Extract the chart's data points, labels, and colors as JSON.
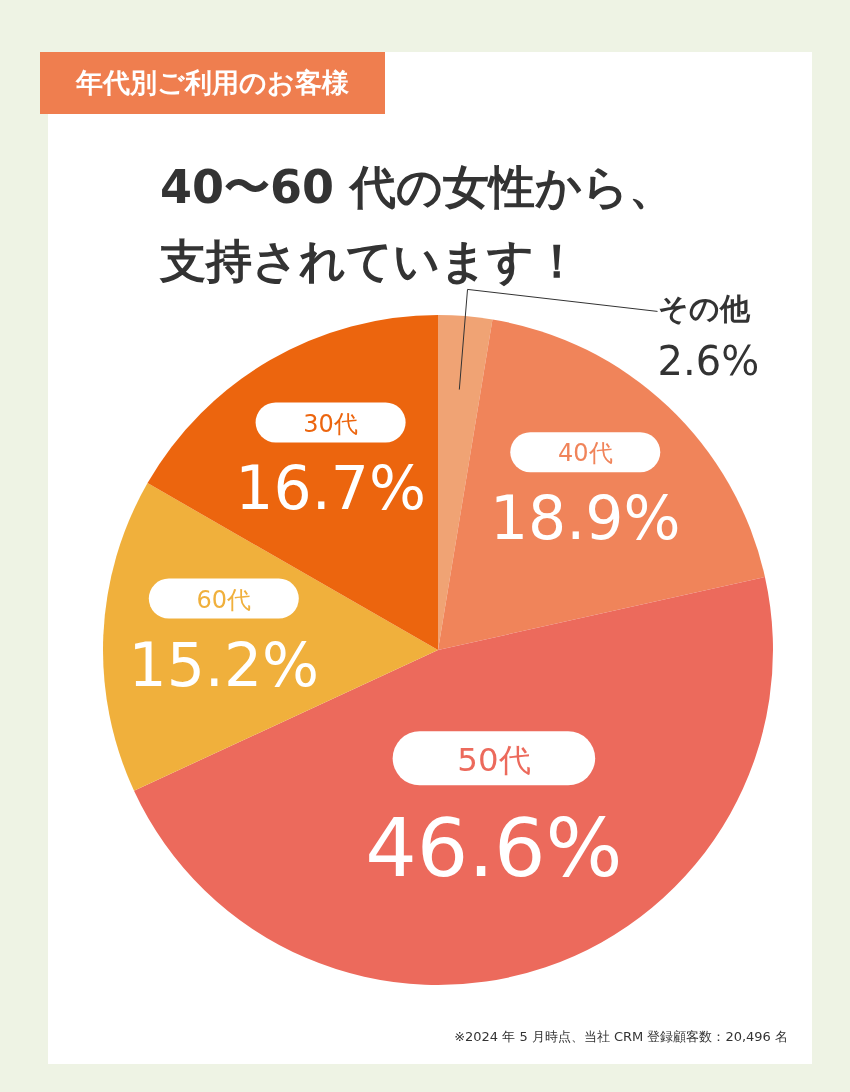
{
  "chart_data": {
    "type": "pie",
    "title": "年代別ご利用のお客様",
    "subtitle": "40〜60 代の女性から、支持されています！",
    "categories": [
      "その他",
      "40代",
      "50代",
      "60代",
      "30代"
    ],
    "values": [
      2.6,
      18.9,
      46.6,
      15.2,
      16.7
    ],
    "value_labels": [
      "2.6%",
      "18.9%",
      "46.6%",
      "15.2%",
      "16.7%"
    ],
    "colors": [
      "#f0a374",
      "#f0845a",
      "#ec6a5c",
      "#f0b03c",
      "#ec650e"
    ],
    "annotations": [
      "※2024 年 5 月時点、当社 CRM 登録顧客数：20,496 名"
    ]
  }
}
